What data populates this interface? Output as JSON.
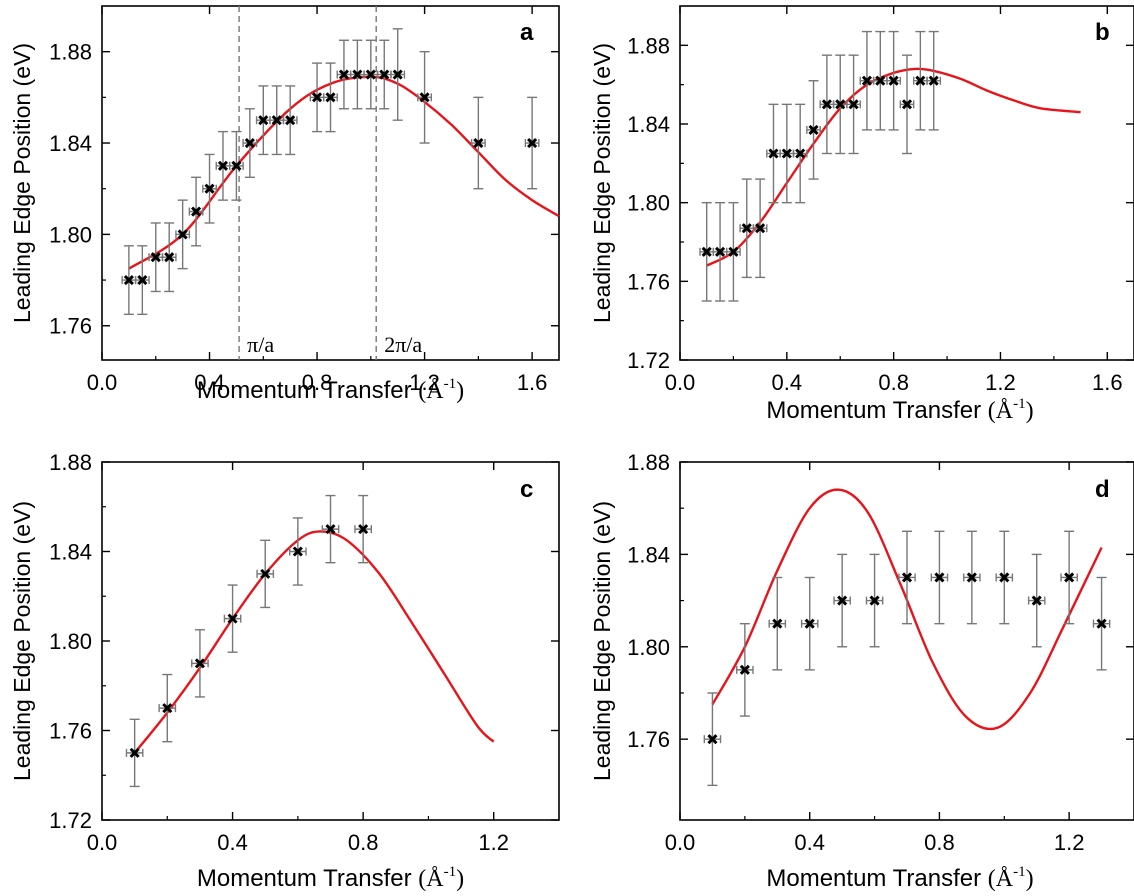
{
  "figure": {
    "x_axis_label": "Momentum Transfer",
    "x_axis_unit": "(Å",
    "x_axis_unit_exp": "-1",
    "x_axis_unit_close": ")",
    "y_axis_label": "Leading Edge Position (eV)"
  },
  "chart_data": [
    {
      "panel": "a",
      "type": "scatter",
      "xlabel": "Momentum Transfer (Å-1)",
      "ylabel": "Leading Edge Position (eV)",
      "xlim": [
        0.0,
        1.7
      ],
      "ylim": [
        1.745,
        1.9
      ],
      "xticks": [
        0.0,
        0.4,
        0.8,
        1.2,
        1.6
      ],
      "xtick_labels": [
        "0.0",
        "0.4",
        "0.8",
        "1.2",
        "1.6"
      ],
      "yticks": [
        1.76,
        1.8,
        1.84,
        1.88
      ],
      "ytick_labels": [
        "1.76",
        "1.80",
        "1.84",
        "1.88"
      ],
      "points": [
        {
          "x": 0.1,
          "y": 1.78,
          "yerr": 0.015
        },
        {
          "x": 0.15,
          "y": 1.78,
          "yerr": 0.015
        },
        {
          "x": 0.2,
          "y": 1.79,
          "yerr": 0.015
        },
        {
          "x": 0.25,
          "y": 1.79,
          "yerr": 0.015
        },
        {
          "x": 0.3,
          "y": 1.8,
          "yerr": 0.015
        },
        {
          "x": 0.35,
          "y": 1.81,
          "yerr": 0.015
        },
        {
          "x": 0.4,
          "y": 1.82,
          "yerr": 0.015
        },
        {
          "x": 0.45,
          "y": 1.83,
          "yerr": 0.015
        },
        {
          "x": 0.5,
          "y": 1.83,
          "yerr": 0.015
        },
        {
          "x": 0.55,
          "y": 1.84,
          "yerr": 0.015
        },
        {
          "x": 0.6,
          "y": 1.85,
          "yerr": 0.015
        },
        {
          "x": 0.65,
          "y": 1.85,
          "yerr": 0.015
        },
        {
          "x": 0.7,
          "y": 1.85,
          "yerr": 0.015
        },
        {
          "x": 0.8,
          "y": 1.86,
          "yerr": 0.015
        },
        {
          "x": 0.85,
          "y": 1.86,
          "yerr": 0.015
        },
        {
          "x": 0.9,
          "y": 1.87,
          "yerr": 0.015
        },
        {
          "x": 0.95,
          "y": 1.87,
          "yerr": 0.015
        },
        {
          "x": 1.0,
          "y": 1.87,
          "yerr": 0.015
        },
        {
          "x": 1.05,
          "y": 1.87,
          "yerr": 0.015
        },
        {
          "x": 1.1,
          "y": 1.87,
          "yerr": 0.02
        },
        {
          "x": 1.2,
          "y": 1.86,
          "yerr": 0.02
        },
        {
          "x": 1.4,
          "y": 1.84,
          "yerr": 0.02
        },
        {
          "x": 1.6,
          "y": 1.84,
          "yerr": 0.02
        }
      ],
      "xerr": 0.025,
      "fit_curve": {
        "x": [
          0.1,
          0.3,
          0.5,
          0.7,
          0.85,
          1.0,
          1.1,
          1.2,
          1.3,
          1.4,
          1.5,
          1.6,
          1.7
        ],
        "y": [
          1.785,
          1.8,
          1.83,
          1.855,
          1.866,
          1.869,
          1.866,
          1.858,
          1.848,
          1.836,
          1.824,
          1.815,
          1.808
        ]
      },
      "vlines": [
        {
          "x": 0.51,
          "label": "π/a"
        },
        {
          "x": 1.02,
          "label": "2π/a"
        }
      ]
    },
    {
      "panel": "b",
      "type": "scatter",
      "xlabel": "Momentum Transfer (Å-1)",
      "ylabel": "Leading Edge Position (eV)",
      "xlim": [
        0.0,
        1.7
      ],
      "ylim": [
        1.72,
        1.9
      ],
      "xticks": [
        0.0,
        0.4,
        0.8,
        1.2,
        1.6
      ],
      "xtick_labels": [
        "0.0",
        "0.4",
        "0.8",
        "1.2",
        "1.6"
      ],
      "yticks": [
        1.72,
        1.76,
        1.8,
        1.84,
        1.88
      ],
      "ytick_labels": [
        "1.72",
        "1.76",
        "1.80",
        "1.84",
        "1.88"
      ],
      "points": [
        {
          "x": 0.1,
          "y": 1.775,
          "yerr": 0.025
        },
        {
          "x": 0.15,
          "y": 1.775,
          "yerr": 0.025
        },
        {
          "x": 0.2,
          "y": 1.775,
          "yerr": 0.025
        },
        {
          "x": 0.25,
          "y": 1.787,
          "yerr": 0.025
        },
        {
          "x": 0.3,
          "y": 1.787,
          "yerr": 0.025
        },
        {
          "x": 0.35,
          "y": 1.825,
          "yerr": 0.025
        },
        {
          "x": 0.4,
          "y": 1.825,
          "yerr": 0.025
        },
        {
          "x": 0.45,
          "y": 1.825,
          "yerr": 0.025
        },
        {
          "x": 0.5,
          "y": 1.837,
          "yerr": 0.025
        },
        {
          "x": 0.55,
          "y": 1.85,
          "yerr": 0.025
        },
        {
          "x": 0.6,
          "y": 1.85,
          "yerr": 0.025
        },
        {
          "x": 0.65,
          "y": 1.85,
          "yerr": 0.025
        },
        {
          "x": 0.7,
          "y": 1.862,
          "yerr": 0.025
        },
        {
          "x": 0.75,
          "y": 1.862,
          "yerr": 0.025
        },
        {
          "x": 0.8,
          "y": 1.862,
          "yerr": 0.025
        },
        {
          "x": 0.85,
          "y": 1.85,
          "yerr": 0.025
        },
        {
          "x": 0.9,
          "y": 1.862,
          "yerr": 0.025
        },
        {
          "x": 0.95,
          "y": 1.862,
          "yerr": 0.025
        }
      ],
      "xerr": 0.025,
      "fit_curve": {
        "x": [
          0.1,
          0.2,
          0.3,
          0.4,
          0.5,
          0.6,
          0.7,
          0.8,
          0.88,
          0.95,
          1.05,
          1.15,
          1.25,
          1.35,
          1.5
        ],
        "y": [
          1.768,
          1.775,
          1.79,
          1.81,
          1.83,
          1.848,
          1.86,
          1.866,
          1.868,
          1.867,
          1.863,
          1.857,
          1.852,
          1.848,
          1.846
        ]
      }
    },
    {
      "panel": "c",
      "type": "scatter",
      "xlabel": "Momentum Transfer (Å-1)",
      "ylabel": "Leading Edge Position (eV)",
      "xlim": [
        0.0,
        1.4
      ],
      "ylim": [
        1.72,
        1.88
      ],
      "xticks": [
        0.0,
        0.4,
        0.8,
        1.2
      ],
      "xtick_labels": [
        "0.0",
        "0.4",
        "0.8",
        "1.2"
      ],
      "yticks": [
        1.72,
        1.76,
        1.8,
        1.84,
        1.88
      ],
      "ytick_labels": [
        "1.72",
        "1.76",
        "1.80",
        "1.84",
        "1.88"
      ],
      "points": [
        {
          "x": 0.1,
          "y": 1.75,
          "yerr": 0.015
        },
        {
          "x": 0.2,
          "y": 1.77,
          "yerr": 0.015
        },
        {
          "x": 0.3,
          "y": 1.79,
          "yerr": 0.015
        },
        {
          "x": 0.4,
          "y": 1.81,
          "yerr": 0.015
        },
        {
          "x": 0.5,
          "y": 1.83,
          "yerr": 0.015
        },
        {
          "x": 0.6,
          "y": 1.84,
          "yerr": 0.015
        },
        {
          "x": 0.7,
          "y": 1.85,
          "yerr": 0.015
        },
        {
          "x": 0.8,
          "y": 1.85,
          "yerr": 0.015
        }
      ],
      "xerr": 0.025,
      "fit_curve": {
        "x": [
          0.1,
          0.2,
          0.3,
          0.4,
          0.5,
          0.6,
          0.67,
          0.75,
          0.85,
          0.95,
          1.05,
          1.15,
          1.2
        ],
        "y": [
          1.75,
          1.768,
          1.788,
          1.81,
          1.83,
          1.845,
          1.849,
          1.845,
          1.83,
          1.808,
          1.785,
          1.762,
          1.755
        ]
      }
    },
    {
      "panel": "d",
      "type": "scatter",
      "xlabel": "Momentum Transfer (Å-1)",
      "ylabel": "Leading Edge Position (eV)",
      "xlim": [
        0.0,
        1.4
      ],
      "ylim": [
        1.725,
        1.88
      ],
      "xticks": [
        0.0,
        0.4,
        0.8,
        1.2
      ],
      "xtick_labels": [
        "0.0",
        "0.4",
        "0.8",
        "1.2"
      ],
      "yticks": [
        1.76,
        1.8,
        1.84,
        1.88
      ],
      "ytick_labels": [
        "1.76",
        "1.80",
        "1.84",
        "1.88"
      ],
      "points": [
        {
          "x": 0.1,
          "y": 1.76,
          "yerr": 0.02
        },
        {
          "x": 0.2,
          "y": 1.79,
          "yerr": 0.02
        },
        {
          "x": 0.3,
          "y": 1.81,
          "yerr": 0.02
        },
        {
          "x": 0.4,
          "y": 1.81,
          "yerr": 0.02
        },
        {
          "x": 0.5,
          "y": 1.82,
          "yerr": 0.02
        },
        {
          "x": 0.6,
          "y": 1.82,
          "yerr": 0.02
        },
        {
          "x": 0.7,
          "y": 1.83,
          "yerr": 0.02
        },
        {
          "x": 0.8,
          "y": 1.83,
          "yerr": 0.02
        },
        {
          "x": 0.9,
          "y": 1.83,
          "yerr": 0.02
        },
        {
          "x": 1.0,
          "y": 1.83,
          "yerr": 0.02
        },
        {
          "x": 1.1,
          "y": 1.82,
          "yerr": 0.02
        },
        {
          "x": 1.2,
          "y": 1.83,
          "yerr": 0.02
        },
        {
          "x": 1.3,
          "y": 1.81,
          "yerr": 0.02
        }
      ],
      "xerr": 0.025,
      "fit_curve": {
        "x": [
          0.1,
          0.2,
          0.3,
          0.4,
          0.49,
          0.58,
          0.68,
          0.78,
          0.88,
          0.98,
          1.08,
          1.18,
          1.3
        ],
        "y": [
          1.775,
          1.8,
          1.833,
          1.86,
          1.868,
          1.858,
          1.827,
          1.793,
          1.77,
          1.765,
          1.78,
          1.808,
          1.843
        ]
      }
    }
  ]
}
